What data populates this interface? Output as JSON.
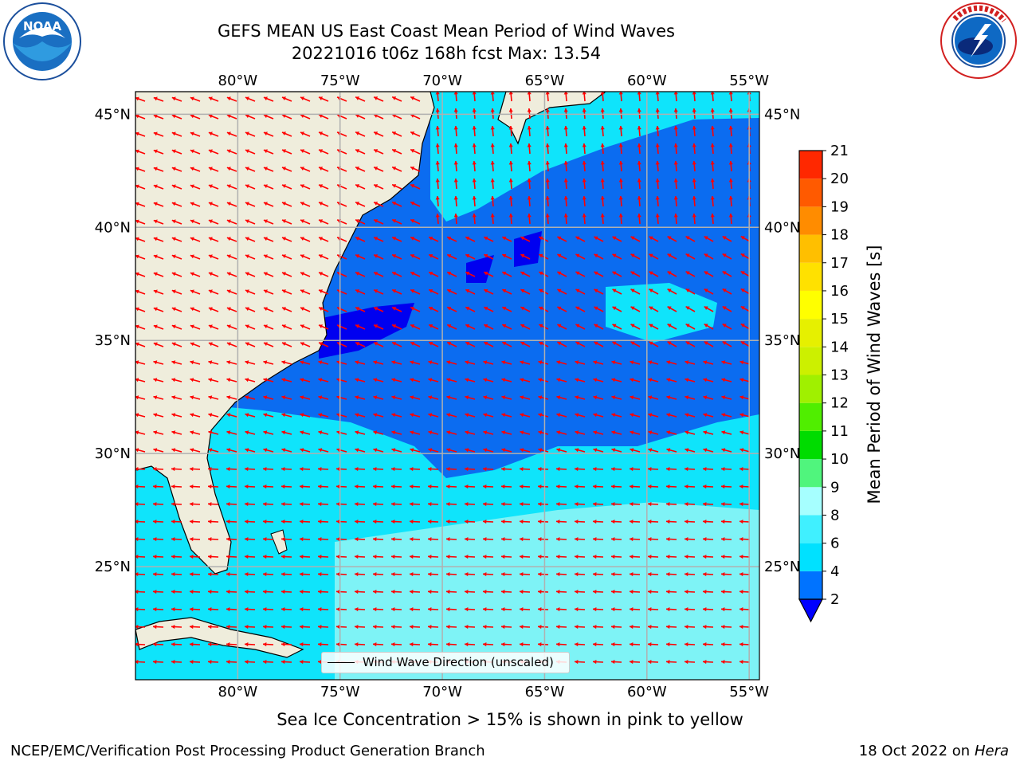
{
  "title": {
    "line1": "GEFS MEAN US East Coast Mean Period of Wind Waves",
    "line2": "20221016 t06z 168h fcst   Max: 13.54"
  },
  "logos": {
    "noaa": {
      "label": "NOAA",
      "ring_text": "NATIONAL OCEANIC AND ATMOSPHERIC ADMINISTRATION · U.S. DEPARTMENT OF COMMERCE"
    },
    "nws": {
      "ring_text": "NATIONAL WEATHER SERVICE"
    }
  },
  "map": {
    "lon_ticks": [
      "80°W",
      "75°W",
      "70°W",
      "65°W",
      "60°W",
      "55°W"
    ],
    "lat_ticks": [
      "45°N",
      "40°N",
      "35°N",
      "30°N",
      "25°N"
    ],
    "lon_values": [
      -80,
      -75,
      -70,
      -65,
      -60,
      -55
    ],
    "lat_values": [
      45,
      40,
      35,
      30,
      25
    ],
    "extent": {
      "lon": [
        -85,
        -54.5
      ],
      "lat": [
        20,
        46
      ]
    },
    "grid": true,
    "arrow_color": "#ff0000",
    "land_color": "#efeddc"
  },
  "legend": {
    "label": "Wind Wave Direction (unscaled)"
  },
  "colorbar": {
    "title": "Mean Period of Wind Waves [s]",
    "ticks": [
      "2",
      "4",
      "6",
      "8",
      "9",
      "10",
      "11",
      "12",
      "13",
      "14",
      "15",
      "16",
      "17",
      "18",
      "19",
      "20",
      "21"
    ],
    "levels": [
      2,
      4,
      6,
      8,
      9,
      10,
      11,
      12,
      13,
      14,
      15,
      16,
      17,
      18,
      19,
      20,
      21
    ],
    "colors": [
      "#0073ff",
      "#00e1ff",
      "#40f0ff",
      "#a6ffff",
      "#50f57d",
      "#00dc00",
      "#50ee00",
      "#a0f000",
      "#ccf000",
      "#e6f000",
      "#ffff00",
      "#ffe100",
      "#ffbf00",
      "#ff8c00",
      "#ff5a00",
      "#ff2800",
      "#ff0000"
    ],
    "under_color": "#0000ff"
  },
  "footnote": "Sea Ice Concentration > 15% is shown in pink to yellow",
  "credit": "NCEP/EMC/Verification Post Processing Product Generation Branch",
  "date_prefix": "18 Oct 2022 on ",
  "date_machine": "Hera"
}
